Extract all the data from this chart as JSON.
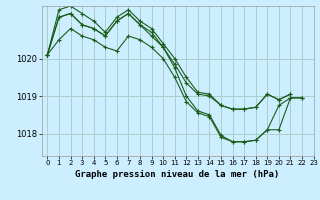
{
  "title": "Graphe pression niveau de la mer (hPa)",
  "bg_color": "#cceeff",
  "grid_color": "#aacccc",
  "line_color": "#1a5c1a",
  "xlim": [
    -0.5,
    23
  ],
  "ylim": [
    1017.4,
    1021.4
  ],
  "yticks": [
    1018,
    1019,
    1020
  ],
  "xtick_labels": [
    "0",
    "1",
    "2",
    "3",
    "4",
    "5",
    "6",
    "7",
    "8",
    "9",
    "10",
    "11",
    "12",
    "13",
    "14",
    "15",
    "16",
    "17",
    "18",
    "19",
    "20",
    "21",
    "22",
    "23"
  ],
  "xticks": [
    0,
    1,
    2,
    3,
    4,
    5,
    6,
    7,
    8,
    9,
    10,
    11,
    12,
    13,
    14,
    15,
    16,
    17,
    18,
    19,
    20,
    21,
    22,
    23
  ],
  "series": [
    [
      1020.1,
      1021.1,
      1021.2,
      1020.9,
      1020.8,
      1020.6,
      1021.0,
      1021.2,
      1020.9,
      1020.6,
      1020.3,
      1019.85,
      1019.35,
      1019.05,
      1019.0,
      1018.75,
      1018.65,
      1018.65,
      1018.7,
      1019.05,
      1018.9,
      1019.05,
      null,
      null
    ],
    [
      1020.1,
      1021.3,
      1021.4,
      1021.2,
      1021.0,
      1020.7,
      1021.1,
      1021.3,
      1021.0,
      1020.8,
      1020.4,
      1020.0,
      1019.5,
      1019.1,
      1019.05,
      1018.75,
      1018.65,
      1018.65,
      1018.7,
      1019.05,
      1018.9,
      1019.05,
      null,
      null
    ],
    [
      1020.1,
      1021.1,
      1021.2,
      1020.9,
      1020.8,
      1020.6,
      1021.0,
      1021.2,
      1020.9,
      1020.7,
      1020.3,
      1019.75,
      1019.0,
      1018.6,
      1018.5,
      1017.95,
      1017.78,
      1017.78,
      1017.82,
      1018.1,
      1018.75,
      1018.95,
      1018.95,
      null
    ],
    [
      1020.1,
      1020.5,
      1020.8,
      1020.6,
      1020.5,
      1020.3,
      1020.2,
      1020.6,
      1020.5,
      1020.3,
      1020.0,
      1019.5,
      1018.85,
      1018.55,
      1018.45,
      1017.9,
      1017.78,
      1017.78,
      1017.82,
      1018.1,
      1018.1,
      1018.95,
      1018.95,
      null
    ]
  ]
}
